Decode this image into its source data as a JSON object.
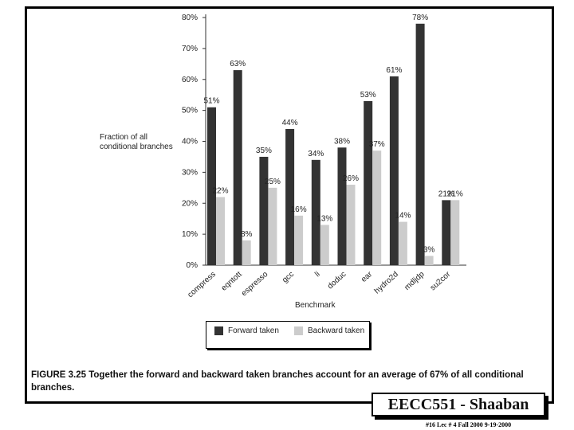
{
  "chart_data": {
    "type": "bar",
    "categories": [
      "compress",
      "eqntott",
      "espresso",
      "gcc",
      "li",
      "doduc",
      "ear",
      "hydro2d",
      "mdljdp",
      "su2cor"
    ],
    "series": [
      {
        "name": "Forward taken",
        "values": [
          51,
          63,
          35,
          44,
          34,
          38,
          53,
          61,
          78,
          21
        ],
        "labels": [
          "51%",
          "63%",
          "35%",
          "44%",
          "34%",
          "38%",
          "53%",
          "61%",
          "78%",
          "21%"
        ],
        "color": "#333333"
      },
      {
        "name": "Backward taken",
        "values": [
          22,
          8,
          25,
          16,
          13,
          26,
          37,
          14,
          3,
          21
        ],
        "labels": [
          "22%",
          "8%",
          "25%",
          "16%",
          "13%",
          "26%",
          "37%",
          "14%",
          "3%",
          "21%"
        ],
        "color": "#cccccc"
      }
    ],
    "ylim": [
      0,
      80
    ],
    "yticks": [
      0,
      10,
      20,
      30,
      40,
      50,
      60,
      70,
      80
    ],
    "ytick_labels": [
      "0%",
      "10%",
      "20%",
      "30%",
      "40%",
      "50%",
      "60%",
      "70%",
      "80%"
    ],
    "ylabel": "Fraction of all conditional branches",
    "xlabel": "Benchmark",
    "legend": "bottom"
  },
  "caption": {
    "lead": "FIGURE 3.25",
    "text": "Together the forward and backward taken branches account for an average of 67% of all conditional branches."
  },
  "course": "EECC551 - Shaaban",
  "footer": "#16   Lec # 4   Fall 2000  9-19-2000"
}
